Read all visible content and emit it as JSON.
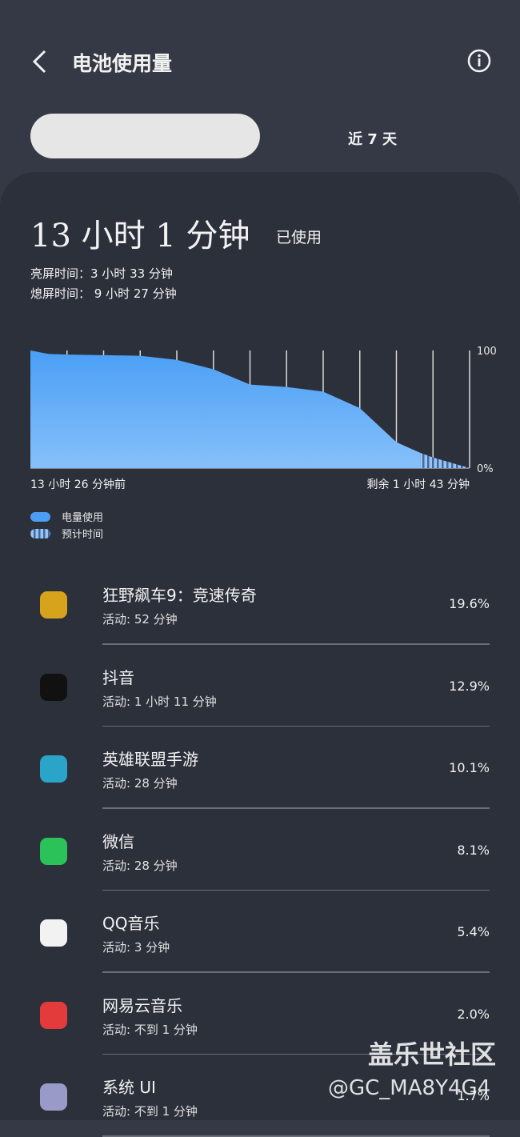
{
  "header": {
    "title": "电池使用量"
  },
  "tabs": {
    "selected": "",
    "other": "近 7 天"
  },
  "summary": {
    "used_time": "13 小时 1 分钟",
    "used_label": "已使用",
    "screen_on": "亮屏时间：3 小时 33 分钟",
    "screen_off": "熄屏时间： 9 小时 27 分钟"
  },
  "chart_data": {
    "type": "area",
    "x_start_label": "13 小时 26 分钟前",
    "x_end_label": "剩余 1 小时 43 分钟",
    "xlim": [
      0,
      12
    ],
    "xticks": [
      1,
      2,
      3,
      4,
      5,
      6,
      7,
      8,
      9,
      10,
      11,
      12
    ],
    "ylim": [
      0,
      100
    ],
    "yticks": [
      100,
      {
        "value": 0,
        "label": "0%"
      }
    ],
    "grid": true,
    "series": [
      {
        "name": "电量使用",
        "color": "#4a9ff5",
        "x": [
          0,
          0.5,
          1,
          2,
          3,
          4,
          5,
          6,
          7,
          8,
          9,
          10,
          10.65
        ],
        "values": [
          100,
          97,
          96.5,
          96,
          95.5,
          92,
          84,
          71,
          69,
          65,
          51,
          22,
          13
        ]
      },
      {
        "name": "预计时间",
        "color": "#7aa6d6",
        "x": [
          10.65,
          11,
          12
        ],
        "values": [
          13,
          9,
          0
        ]
      }
    ]
  },
  "apps": [
    {
      "name": "狂野飙车9：竞速传奇",
      "activity": "活动: 52 分钟",
      "percent": "19.6%"
    },
    {
      "name": "抖音",
      "activity": "活动: 1 小时 11 分钟",
      "percent": "12.9%"
    },
    {
      "name": "英雄联盟手游",
      "activity": "活动: 28 分钟",
      "percent": "10.1%"
    },
    {
      "name": "微信",
      "activity": "活动: 28 分钟",
      "percent": "8.1%"
    },
    {
      "name": "QQ音乐",
      "activity": "活动: 3 分钟",
      "percent": "5.4%"
    },
    {
      "name": "网易云音乐",
      "activity": "活动: 不到 1 分钟",
      "percent": "2.0%"
    },
    {
      "name": "系统 UI",
      "activity": "活动: 不到 1 分钟",
      "percent": "1.7%"
    }
  ],
  "watermark": {
    "brand": "盖乐世社区",
    "user": "@GC_MA8Y4G4"
  }
}
